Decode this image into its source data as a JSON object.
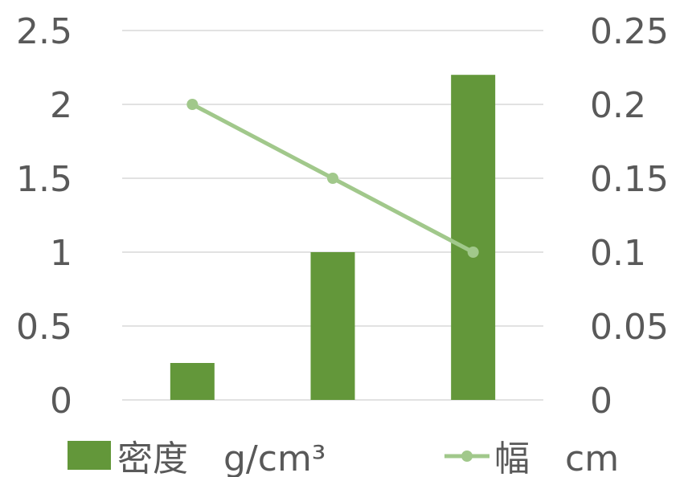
{
  "chart_data": {
    "type": "bar",
    "categories": [
      "",
      "",
      ""
    ],
    "series": [
      {
        "name": "密度　g/cm³",
        "type": "bar",
        "axis": "left",
        "color": "#63973A",
        "values": [
          0.25,
          1.0,
          2.2
        ]
      },
      {
        "name": "幅　cm",
        "type": "line",
        "axis": "right",
        "color": "#A1C88B",
        "values": [
          0.2,
          0.15,
          0.1
        ]
      }
    ],
    "y_left": {
      "ylim": [
        0,
        2.5
      ],
      "ticks": [
        "0",
        "0.5",
        "1",
        "1.5",
        "2",
        "2.5"
      ]
    },
    "y_right": {
      "ylim": [
        0,
        0.25
      ],
      "ticks": [
        "0",
        "0.05",
        "0.1",
        "0.15",
        "0.2",
        "0.25"
      ]
    },
    "grid": true,
    "gridline_color": "#d9d9d9",
    "legend": "bottom"
  }
}
